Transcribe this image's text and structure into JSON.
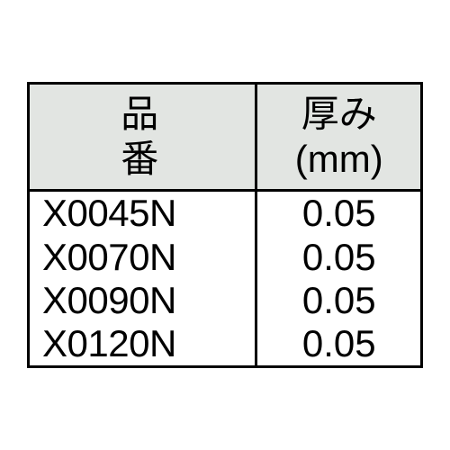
{
  "table": {
    "header": {
      "part_label": "品番",
      "thickness_label_line1": "厚み",
      "thickness_label_line2": "(mm)"
    },
    "rows": [
      {
        "part": "X0045N",
        "thickness": "0.05"
      },
      {
        "part": "X0070N",
        "thickness": "0.05"
      },
      {
        "part": "X0090N",
        "thickness": "0.05"
      },
      {
        "part": "X0120N",
        "thickness": "0.05"
      }
    ],
    "colors": {
      "header_bg": "#e2e5e2",
      "border": "#000000",
      "text": "#000000",
      "page_bg": "#ffffff"
    },
    "font_sizes": {
      "header": 42,
      "body": 42
    }
  }
}
